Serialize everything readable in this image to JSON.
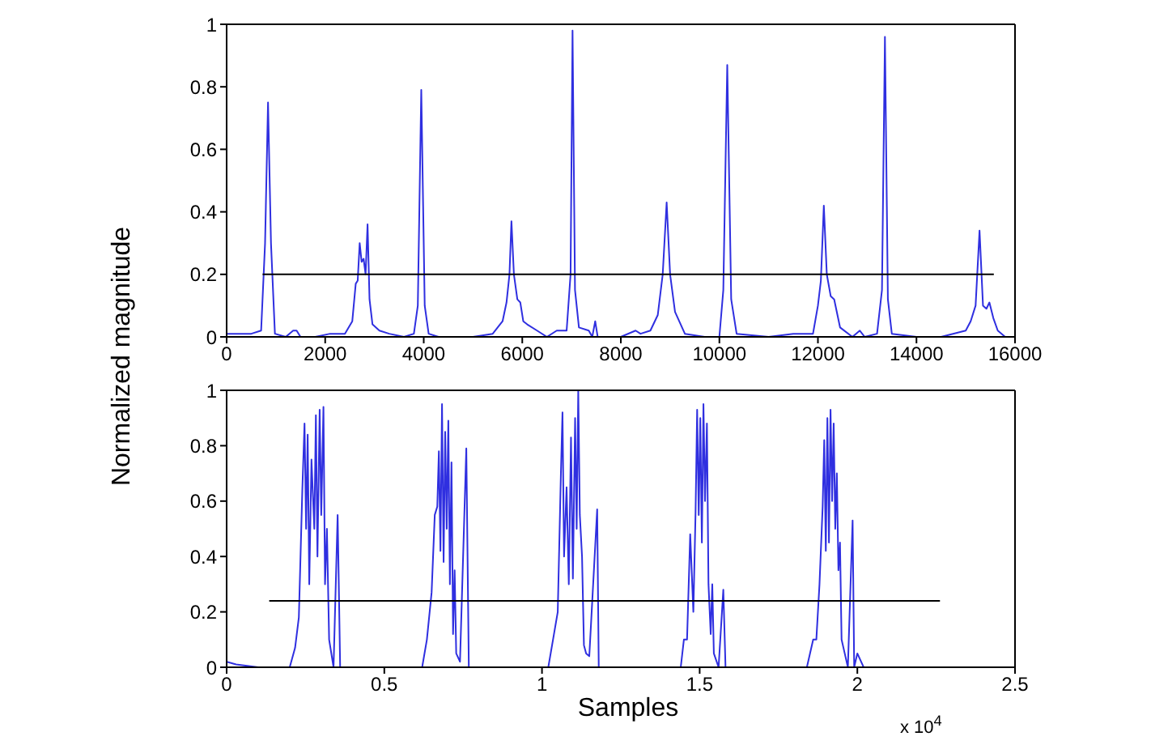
{
  "chart_data": [
    {
      "type": "line",
      "ylabel": "Normalized magnitude",
      "xlim": [
        0,
        16000
      ],
      "ylim": [
        0,
        1
      ],
      "xticks": [
        0,
        2000,
        4000,
        6000,
        8000,
        10000,
        12000,
        14000,
        16000
      ],
      "yticks": [
        0,
        0.2,
        0.4,
        0.6,
        0.8,
        1
      ],
      "marker": "none",
      "line_style": "solid",
      "series": [
        {
          "color": "#2f2fe0",
          "x": [
            0,
            500,
            700,
            780,
            840,
            900,
            980,
            1200,
            1350,
            1420,
            1500,
            1800,
            2100,
            2400,
            2550,
            2620,
            2660,
            2700,
            2740,
            2780,
            2820,
            2860,
            2900,
            2960,
            3100,
            3300,
            3600,
            3800,
            3880,
            3950,
            4020,
            4100,
            4300,
            5000,
            5400,
            5600,
            5680,
            5740,
            5780,
            5830,
            5900,
            5960,
            6020,
            6100,
            6300,
            6500,
            6700,
            6900,
            6980,
            7020,
            7070,
            7150,
            7350,
            7420,
            7480,
            7530,
            7600,
            8000,
            8300,
            8400,
            8600,
            8750,
            8850,
            8930,
            9000,
            9100,
            9300,
            9700,
            10000,
            10080,
            10160,
            10240,
            10350,
            11000,
            11500,
            11900,
            12000,
            12060,
            12120,
            12180,
            12260,
            12330,
            12450,
            12700,
            12850,
            12950,
            13200,
            13300,
            13360,
            13420,
            13500,
            14000,
            14500,
            15000,
            15100,
            15200,
            15280,
            15350,
            15420,
            15480,
            15560,
            15650,
            15800,
            16000
          ],
          "values": [
            0.01,
            0.01,
            0.02,
            0.3,
            0.75,
            0.3,
            0.01,
            0.0,
            0.02,
            0.02,
            0.0,
            0.0,
            0.01,
            0.01,
            0.05,
            0.17,
            0.18,
            0.3,
            0.24,
            0.25,
            0.2,
            0.36,
            0.12,
            0.04,
            0.02,
            0.01,
            0.0,
            0.01,
            0.1,
            0.79,
            0.1,
            0.01,
            0.0,
            0.0,
            0.01,
            0.05,
            0.11,
            0.2,
            0.37,
            0.2,
            0.12,
            0.11,
            0.05,
            0.04,
            0.02,
            0.0,
            0.02,
            0.02,
            0.2,
            0.98,
            0.15,
            0.03,
            0.02,
            0.0,
            0.05,
            0.0,
            0.0,
            0.0,
            0.02,
            0.01,
            0.02,
            0.07,
            0.2,
            0.43,
            0.2,
            0.08,
            0.01,
            0.0,
            0.0,
            0.15,
            0.87,
            0.12,
            0.01,
            0.0,
            0.01,
            0.01,
            0.1,
            0.18,
            0.42,
            0.2,
            0.13,
            0.12,
            0.03,
            0.0,
            0.02,
            0.0,
            0.01,
            0.15,
            0.96,
            0.12,
            0.01,
            0.0,
            0.0,
            0.02,
            0.05,
            0.1,
            0.34,
            0.1,
            0.09,
            0.11,
            0.06,
            0.02,
            0.0,
            0.0
          ]
        },
        {
          "color": "#000000",
          "x": [
            730,
            15570
          ],
          "values": [
            0.2,
            0.2
          ]
        }
      ]
    },
    {
      "type": "line",
      "xlabel": "Samples",
      "annotations": [
        "x 10$^{4}$"
      ],
      "xlim": [
        0,
        2.5
      ],
      "ylim": [
        0,
        1
      ],
      "xticks": [
        0,
        0.5,
        1,
        1.5,
        2,
        2.5
      ],
      "yticks": [
        0,
        0.2,
        0.4,
        0.6,
        0.8,
        1
      ],
      "marker": "none",
      "line_style": "solid",
      "series": [
        {
          "color": "#2f2fe0",
          "x": [
            0,
            0.03,
            0.1,
            0.2,
            0.217,
            0.229,
            0.24,
            0.247,
            0.252,
            0.257,
            0.262,
            0.269,
            0.278,
            0.283,
            0.288,
            0.295,
            0.3,
            0.307,
            0.312,
            0.318,
            0.325,
            0.339,
            0.352,
            0.36,
            0.4,
            0.62,
            0.635,
            0.65,
            0.66,
            0.668,
            0.673,
            0.678,
            0.683,
            0.688,
            0.693,
            0.698,
            0.703,
            0.708,
            0.713,
            0.718,
            0.723,
            0.728,
            0.74,
            0.76,
            0.768,
            0.78,
            1.02,
            1.035,
            1.05,
            1.06,
            1.065,
            1.07,
            1.078,
            1.085,
            1.092,
            1.098,
            1.105,
            1.11,
            1.115,
            1.12,
            1.127,
            1.133,
            1.14,
            1.15,
            1.175,
            1.18,
            1.2,
            1.44,
            1.45,
            1.46,
            1.47,
            1.48,
            1.487,
            1.492,
            1.497,
            1.502,
            1.507,
            1.512,
            1.517,
            1.523,
            1.528,
            1.535,
            1.54,
            1.545,
            1.56,
            1.575,
            1.582,
            1.6,
            1.84,
            1.86,
            1.87,
            1.88,
            1.89,
            1.895,
            1.9,
            1.905,
            1.91,
            1.915,
            1.92,
            1.925,
            1.93,
            1.935,
            1.94,
            1.945,
            1.95,
            1.96,
            1.97,
            1.985,
            1.99,
            2.0,
            2.02
          ],
          "values": [
            0.02,
            0.01,
            0.0,
            0.0,
            0.07,
            0.18,
            0.64,
            0.88,
            0.5,
            0.84,
            0.3,
            0.75,
            0.5,
            0.91,
            0.4,
            0.93,
            0.55,
            0.94,
            0.3,
            0.5,
            0.1,
            0.0,
            0.55,
            0.0,
            0.0,
            0.0,
            0.1,
            0.27,
            0.55,
            0.58,
            0.78,
            0.42,
            0.95,
            0.38,
            0.85,
            0.5,
            0.89,
            0.3,
            0.74,
            0.12,
            0.35,
            0.05,
            0.02,
            0.79,
            0.0,
            0.0,
            0.0,
            0.1,
            0.2,
            0.7,
            0.92,
            0.4,
            0.65,
            0.3,
            0.83,
            0.32,
            0.9,
            0.5,
            1.0,
            0.55,
            0.4,
            0.08,
            0.05,
            0.04,
            0.57,
            0.0,
            0.0,
            0.0,
            0.1,
            0.1,
            0.48,
            0.2,
            0.56,
            0.93,
            0.55,
            0.9,
            0.45,
            0.95,
            0.6,
            0.88,
            0.3,
            0.12,
            0.3,
            0.05,
            0.0,
            0.28,
            0.0,
            0.0,
            0.0,
            0.1,
            0.1,
            0.3,
            0.58,
            0.82,
            0.42,
            0.9,
            0.45,
            0.93,
            0.6,
            0.88,
            0.5,
            0.7,
            0.35,
            0.45,
            0.1,
            0.05,
            0.0,
            0.53,
            0.0,
            0.05,
            0.0
          ]
        },
        {
          "color": "#000000",
          "x": [
            0.135,
            2.262
          ],
          "values": [
            0.24,
            0.24
          ]
        }
      ]
    }
  ]
}
